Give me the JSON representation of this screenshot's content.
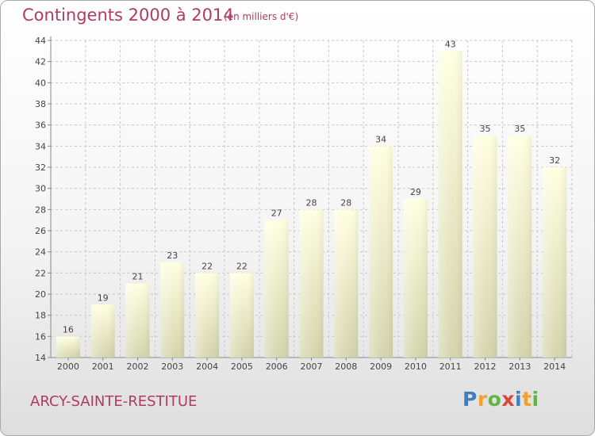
{
  "title": "Contingents 2000 à 2014",
  "subtitle": "(en milliers d'€)",
  "place": "ARCY-SAINTE-RESTITUE",
  "logo": {
    "letters": [
      {
        "ch": "P",
        "color": "#3b7fc4"
      },
      {
        "ch": "r",
        "color": "#f0a22b"
      },
      {
        "ch": "o",
        "color": "#62b446"
      },
      {
        "ch": "x",
        "color": "#d9453b"
      },
      {
        "ch": "i",
        "color": "#3b7fc4"
      },
      {
        "ch": "t",
        "color": "#f0a22b"
      },
      {
        "ch": "i",
        "color": "#62b446"
      }
    ]
  },
  "colors": {
    "bar_top": "#ffffe0",
    "bar_bottom": "#d4d4ac",
    "grid": "#c8c8c8",
    "axis": "#888888",
    "text": "#444444"
  },
  "chart_data": {
    "type": "bar",
    "title": "Contingents 2000 à 2014",
    "subtitle": "(en milliers d'€)",
    "categories": [
      "2000",
      "2001",
      "2002",
      "2003",
      "2004",
      "2005",
      "2006",
      "2007",
      "2008",
      "2009",
      "2010",
      "2011",
      "2012",
      "2013",
      "2014"
    ],
    "values": [
      16,
      19,
      21,
      23,
      22,
      22,
      27,
      28,
      28,
      34,
      29,
      43,
      35,
      35,
      32
    ],
    "ylim": [
      14,
      44
    ],
    "yticks": [
      14,
      16,
      18,
      20,
      22,
      24,
      26,
      28,
      30,
      32,
      34,
      36,
      38,
      40,
      42,
      44
    ],
    "grid": true,
    "xlabel": "",
    "ylabel": ""
  }
}
